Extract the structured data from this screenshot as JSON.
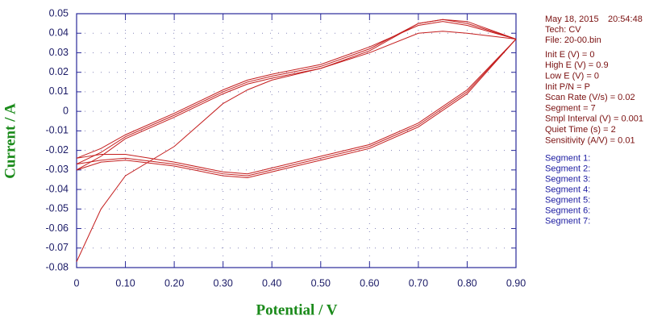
{
  "chart_data": {
    "type": "line",
    "xlabel": "Potential / V",
    "ylabel": "Current / A",
    "xlim": [
      0,
      0.9
    ],
    "ylim": [
      -0.08,
      0.05
    ],
    "xticks": [
      0,
      {
        "value": 0.1,
        "label": "0.10"
      },
      {
        "value": 0.2,
        "label": "0.20"
      },
      {
        "value": 0.3,
        "label": "0.30"
      },
      {
        "value": 0.4,
        "label": "0.40"
      },
      {
        "value": 0.5,
        "label": "0.50"
      },
      {
        "value": 0.6,
        "label": "0.60"
      },
      {
        "value": 0.7,
        "label": "0.70"
      },
      {
        "value": 0.8,
        "label": "0.80"
      },
      {
        "value": 0.9,
        "label": "0.90"
      }
    ],
    "yticks": [
      0.05,
      0.04,
      0.03,
      0.02,
      0.01,
      0,
      -0.01,
      -0.02,
      -0.03,
      -0.04,
      -0.05,
      -0.06,
      -0.07,
      -0.08
    ],
    "grid": true,
    "date": "May 18, 2015",
    "time": "20:54:48",
    "header": [
      "Tech: CV",
      "File: 20-00.bin"
    ],
    "parameters": [
      "Init E (V) = 0",
      "High E (V) = 0.9",
      "Low E (V) = 0",
      "Init P/N = P",
      "Scan Rate (V/s) = 0.02",
      "Segment = 7",
      "Smpl Interval (V) = 0.001",
      "Quiet Time (s) = 2",
      "Sensitivity (A/V) = 0.01"
    ],
    "series": [
      {
        "name": "Segment 1:",
        "color": "#c41e1e",
        "x": [
          0,
          0.05,
          0.1,
          0.2,
          0.3,
          0.35,
          0.4,
          0.5,
          0.6,
          0.7,
          0.75,
          0.8,
          0.9
        ],
        "values": [
          -0.077,
          -0.05,
          -0.033,
          -0.018,
          0.004,
          0.011,
          0.016,
          0.022,
          0.03,
          0.04,
          0.041,
          0.04,
          0.037
        ]
      },
      {
        "name": "Segment 2:",
        "color": "#c41e1e",
        "x": [
          0.9,
          0.8,
          0.7,
          0.6,
          0.5,
          0.4,
          0.35,
          0.3,
          0.2,
          0.1,
          0.05,
          0
        ],
        "values": [
          0.037,
          0.011,
          -0.006,
          -0.017,
          -0.023,
          -0.029,
          -0.032,
          -0.031,
          -0.026,
          -0.022,
          -0.022,
          -0.024
        ]
      },
      {
        "name": "Segment 3:",
        "color": "#c41e1e",
        "x": [
          0,
          0.05,
          0.1,
          0.2,
          0.3,
          0.35,
          0.4,
          0.5,
          0.6,
          0.7,
          0.75,
          0.8,
          0.9
        ],
        "values": [
          -0.024,
          -0.019,
          -0.012,
          -0.001,
          0.011,
          0.016,
          0.019,
          0.024,
          0.033,
          0.044,
          0.046,
          0.044,
          0.037
        ]
      },
      {
        "name": "Segment 4:",
        "color": "#c41e1e",
        "x": [
          0.9,
          0.8,
          0.7,
          0.6,
          0.5,
          0.4,
          0.35,
          0.3,
          0.2,
          0.1,
          0.05,
          0
        ],
        "values": [
          0.037,
          0.01,
          -0.007,
          -0.018,
          -0.024,
          -0.03,
          -0.033,
          -0.032,
          -0.027,
          -0.024,
          -0.025,
          -0.027
        ]
      },
      {
        "name": "Segment 5:",
        "color": "#c41e1e",
        "x": [
          0,
          0.05,
          0.1,
          0.2,
          0.3,
          0.35,
          0.4,
          0.5,
          0.6,
          0.7,
          0.75,
          0.8,
          0.9
        ],
        "values": [
          -0.027,
          -0.021,
          -0.013,
          -0.002,
          0.01,
          0.015,
          0.018,
          0.023,
          0.032,
          0.045,
          0.047,
          0.045,
          0.037
        ]
      },
      {
        "name": "Segment 6:",
        "color": "#c41e1e",
        "x": [
          0.9,
          0.8,
          0.7,
          0.6,
          0.5,
          0.4,
          0.35,
          0.3,
          0.2,
          0.1,
          0.05,
          0
        ],
        "values": [
          0.037,
          0.009,
          -0.008,
          -0.019,
          -0.025,
          -0.031,
          -0.034,
          -0.033,
          -0.028,
          -0.025,
          -0.026,
          -0.03
        ]
      },
      {
        "name": "Segment 7:",
        "color": "#c41e1e",
        "x": [
          0,
          0.05,
          0.1,
          0.2,
          0.3,
          0.35,
          0.4,
          0.5,
          0.6,
          0.7,
          0.75,
          0.8,
          0.9
        ],
        "values": [
          -0.03,
          -0.023,
          -0.014,
          -0.003,
          0.009,
          0.014,
          0.017,
          0.022,
          0.031,
          0.045,
          0.047,
          0.046,
          0.037
        ]
      }
    ]
  }
}
